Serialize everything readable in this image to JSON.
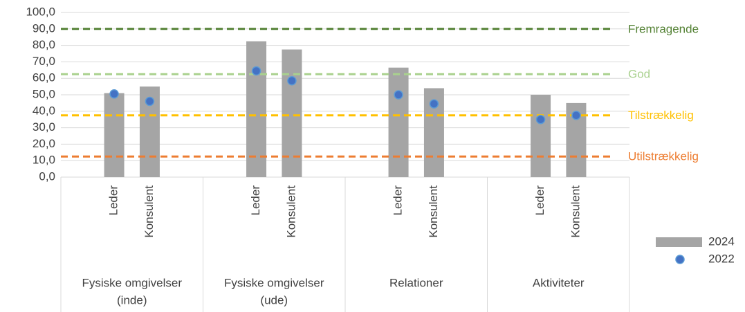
{
  "chart_data": {
    "type": "bar",
    "groups": [
      {
        "label": [
          "Fysiske omgivelser",
          "(inde)"
        ]
      },
      {
        "label": [
          "Fysiske omgivelser",
          "(ude)"
        ]
      },
      {
        "label": [
          "Relationer"
        ]
      },
      {
        "label": [
          "Aktiviteter"
        ]
      }
    ],
    "categories": [
      "Leder",
      "Konsulent",
      "Leder",
      "Konsulent",
      "Leder",
      "Konsulent",
      "Leder",
      "Konsulent"
    ],
    "series": [
      {
        "name": "2024",
        "style": "bar",
        "color": "#a5a5a5",
        "values": [
          51,
          55,
          82.5,
          77.5,
          66.5,
          54,
          50,
          45
        ]
      },
      {
        "name": "2022",
        "style": "dot",
        "color": "#4472c4",
        "values": [
          50.5,
          46,
          64.5,
          58.5,
          50,
          44.5,
          35,
          37.5
        ]
      }
    ],
    "reference_lines": [
      {
        "label": "Fremragende",
        "value": 90,
        "color": "#548235"
      },
      {
        "label": "God",
        "value": 62.5,
        "color": "#a9d18e"
      },
      {
        "label": "Tilstrækkelig",
        "value": 37.5,
        "color": "#ffc000"
      },
      {
        "label": "Utilstrækkelig",
        "value": 12.5,
        "color": "#ed7d31"
      }
    ],
    "ylim": [
      0,
      100
    ],
    "yticks": [
      {
        "value": 0,
        "label": "0,0"
      },
      {
        "value": 10,
        "label": "10,0"
      },
      {
        "value": 20,
        "label": "20,0"
      },
      {
        "value": 30,
        "label": "30,0"
      },
      {
        "value": 40,
        "label": "40,0"
      },
      {
        "value": 50,
        "label": "50,0"
      },
      {
        "value": 60,
        "label": "60,0"
      },
      {
        "value": 70,
        "label": "70,0"
      },
      {
        "value": 80,
        "label": "80,0"
      },
      {
        "value": 90,
        "label": "90,0"
      },
      {
        "value": 100,
        "label": "100,0"
      }
    ],
    "grid": true
  }
}
